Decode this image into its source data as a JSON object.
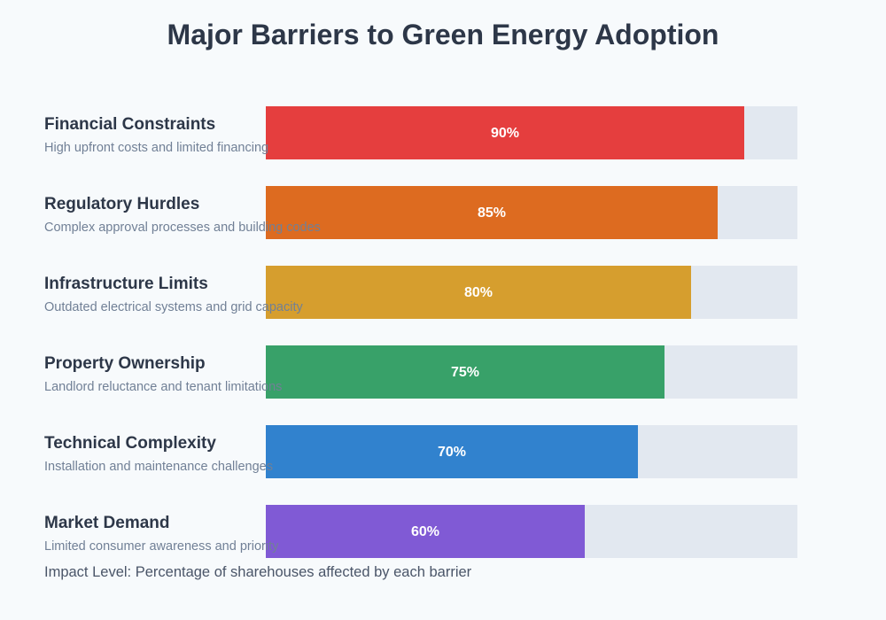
{
  "chart_data": {
    "type": "bar",
    "orientation": "horizontal",
    "title": "Major Barriers to Green Energy Adoption",
    "xlim": [
      0,
      100
    ],
    "grid": false,
    "categories": [
      "Financial Constraints",
      "Regulatory Hurdles",
      "Infrastructure Limits",
      "Property Ownership",
      "Technical Complexity",
      "Market Demand"
    ],
    "descriptions": [
      "High upfront costs and limited financing",
      "Complex approval processes and building codes",
      "Outdated electrical systems and grid capacity",
      "Landlord reluctance and tenant limitations",
      "Installation and maintenance challenges",
      "Limited consumer awareness and priority"
    ],
    "values": [
      90,
      85,
      80,
      75,
      70,
      60
    ],
    "value_labels": [
      "90%",
      "85%",
      "80%",
      "75%",
      "70%",
      "60%"
    ],
    "colors": [
      "#e53e3e",
      "#dd6b20",
      "#d69e2e",
      "#38a169",
      "#3182ce",
      "#805ad5"
    ],
    "track_color": "#e2e8f0",
    "footnote": "Impact Level: Percentage of sharehouses affected by each barrier"
  }
}
